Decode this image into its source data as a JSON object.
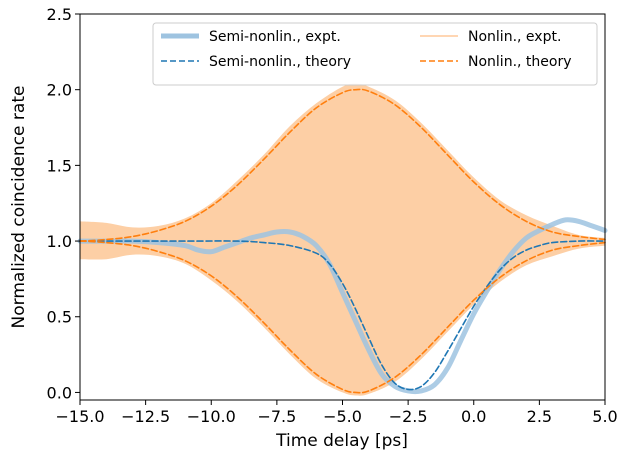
{
  "chart_data": {
    "type": "line",
    "title": "",
    "xlabel": "Time delay [ps]",
    "ylabel": "Normalized coincidence rate",
    "xlim": [
      -15.0,
      5.0
    ],
    "ylim": [
      -0.05,
      2.5
    ],
    "xticks": [
      -15.0,
      -12.5,
      -10.0,
      -7.5,
      -5.0,
      -2.5,
      0.0,
      2.5,
      5.0
    ],
    "xtick_labels": [
      "−15.0",
      "−12.5",
      "−10.0",
      "−7.5",
      "−5.0",
      "−2.5",
      "0.0",
      "2.5",
      "5.0"
    ],
    "yticks": [
      0.0,
      0.5,
      1.0,
      1.5,
      2.0,
      2.5
    ],
    "ytick_labels": [
      "0.0",
      "0.5",
      "1.0",
      "1.5",
      "2.0",
      "2.5"
    ],
    "grid": false,
    "legend_position": "top-right",
    "legend": [
      {
        "label": "Semi-nonlin., expt.",
        "style": "thick-solid",
        "color": "#9ec3e0"
      },
      {
        "label": "Nonlin., expt.",
        "style": "thin-solid",
        "color": "#ffd6b3"
      },
      {
        "label": "Semi-nonlin., theory",
        "style": "dashed",
        "color": "#1f77b4"
      },
      {
        "label": "Nonlin., theory",
        "style": "dashed",
        "color": "#ff7f0e"
      }
    ],
    "series": [
      {
        "name": "Semi-nonlin., expt.",
        "color": "#9ec3e0",
        "x": [
          -15.0,
          -14.0,
          -13.0,
          -12.0,
          -11.0,
          -10.5,
          -10.0,
          -9.5,
          -9.0,
          -8.5,
          -8.0,
          -7.5,
          -7.0,
          -6.5,
          -6.0,
          -5.5,
          -5.0,
          -4.5,
          -4.0,
          -3.5,
          -3.0,
          -2.5,
          -2.0,
          -1.5,
          -1.0,
          -0.5,
          0.0,
          0.5,
          1.0,
          1.5,
          2.0,
          2.5,
          3.0,
          3.5,
          4.0,
          4.5,
          5.0
        ],
        "y": [
          1.0,
          1.0,
          1.0,
          0.99,
          0.97,
          0.94,
          0.93,
          0.96,
          0.99,
          1.02,
          1.04,
          1.06,
          1.06,
          1.03,
          0.97,
          0.85,
          0.66,
          0.47,
          0.28,
          0.12,
          0.04,
          0.01,
          0.01,
          0.05,
          0.16,
          0.34,
          0.52,
          0.67,
          0.81,
          0.93,
          1.02,
          1.07,
          1.11,
          1.14,
          1.13,
          1.1,
          1.07
        ]
      },
      {
        "name": "Semi-nonlin., theory",
        "color": "#1f77b4",
        "x": [
          -15.0,
          -13.0,
          -11.0,
          -9.0,
          -8.0,
          -7.0,
          -6.0,
          -5.5,
          -5.0,
          -4.5,
          -4.0,
          -3.5,
          -3.0,
          -2.5,
          -2.0,
          -1.5,
          -1.0,
          -0.5,
          0.0,
          0.5,
          1.0,
          1.5,
          2.0,
          2.5,
          3.0,
          4.0,
          5.0
        ],
        "y": [
          1.0,
          1.0,
          1.0,
          1.0,
          0.99,
          0.97,
          0.92,
          0.85,
          0.72,
          0.55,
          0.36,
          0.18,
          0.06,
          0.02,
          0.04,
          0.13,
          0.27,
          0.42,
          0.57,
          0.7,
          0.81,
          0.89,
          0.94,
          0.97,
          0.99,
          1.0,
          1.0
        ]
      },
      {
        "name": "Nonlin., theory (upper)",
        "color": "#ff7f0e",
        "x": [
          -15.0,
          -14.0,
          -13.0,
          -12.0,
          -11.0,
          -10.0,
          -9.0,
          -8.0,
          -7.0,
          -6.0,
          -5.0,
          -4.5,
          -4.0,
          -3.0,
          -2.0,
          -1.0,
          0.0,
          1.0,
          2.0,
          3.0,
          4.0,
          5.0
        ],
        "y": [
          1.0,
          1.01,
          1.03,
          1.07,
          1.13,
          1.23,
          1.37,
          1.54,
          1.72,
          1.88,
          1.98,
          2.0,
          1.99,
          1.9,
          1.75,
          1.57,
          1.39,
          1.24,
          1.13,
          1.06,
          1.03,
          1.01
        ]
      },
      {
        "name": "Nonlin., theory (lower)",
        "color": "#ff7f0e",
        "x": [
          -15.0,
          -14.0,
          -13.0,
          -12.0,
          -11.0,
          -10.0,
          -9.0,
          -8.0,
          -7.0,
          -6.0,
          -5.0,
          -4.5,
          -4.0,
          -3.0,
          -2.0,
          -1.0,
          0.0,
          1.0,
          2.0,
          3.0,
          4.0,
          5.0
        ],
        "y": [
          1.0,
          0.99,
          0.97,
          0.93,
          0.87,
          0.77,
          0.63,
          0.46,
          0.28,
          0.12,
          0.02,
          0.0,
          0.01,
          0.1,
          0.25,
          0.43,
          0.61,
          0.76,
          0.87,
          0.94,
          0.97,
          0.99
        ]
      }
    ],
    "band": {
      "name": "Nonlin., expt.",
      "color": "#fdcfa5",
      "x": [
        -15.0,
        -14.0,
        -13.0,
        -12.0,
        -11.0,
        -10.0,
        -9.0,
        -8.0,
        -7.0,
        -6.0,
        -5.0,
        -4.5,
        -4.0,
        -3.0,
        -2.0,
        -1.0,
        0.0,
        1.0,
        2.0,
        3.0,
        4.0,
        5.0
      ],
      "upper": [
        1.13,
        1.12,
        1.09,
        1.1,
        1.15,
        1.25,
        1.4,
        1.57,
        1.76,
        1.91,
        2.02,
        2.04,
        2.02,
        1.93,
        1.78,
        1.6,
        1.42,
        1.27,
        1.17,
        1.1,
        1.04,
        1.02
      ],
      "lower": [
        0.88,
        0.88,
        0.91,
        0.9,
        0.85,
        0.74,
        0.6,
        0.43,
        0.25,
        0.09,
        0.0,
        -0.02,
        -0.01,
        0.07,
        0.22,
        0.4,
        0.58,
        0.73,
        0.84,
        0.9,
        0.95,
        0.97
      ]
    }
  }
}
